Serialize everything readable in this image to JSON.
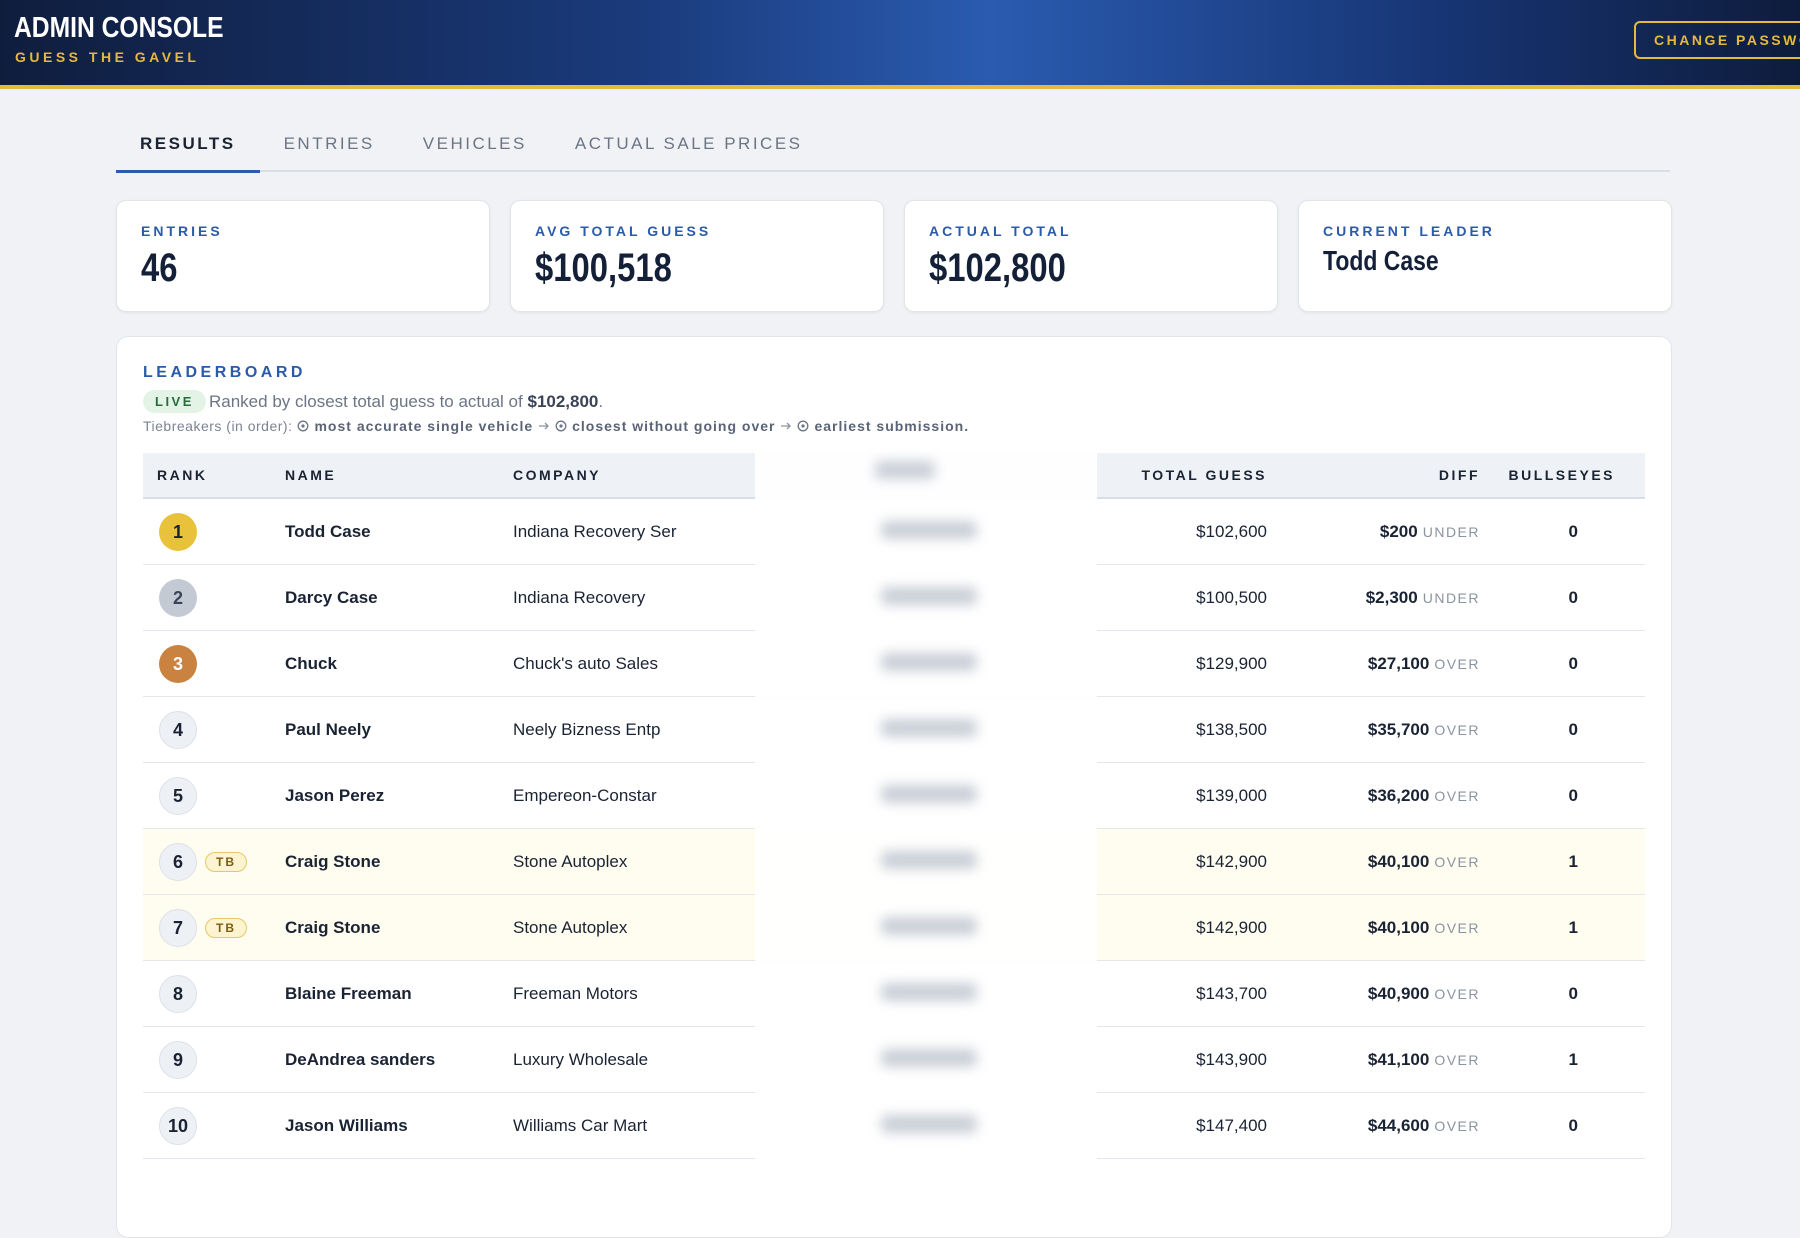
{
  "header": {
    "title": "ADMIN CONSOLE",
    "subtitle": "GUESS THE GAVEL",
    "button": "CHANGE PASSWORD"
  },
  "tabs": [
    "RESULTS",
    "ENTRIES",
    "VEHICLES",
    "ACTUAL SALE PRICES"
  ],
  "stats": [
    {
      "label": "ENTRIES",
      "value": "46"
    },
    {
      "label": "AVG TOTAL GUESS",
      "value": "$100,518"
    },
    {
      "label": "ACTUAL TOTAL",
      "value": "$102,800"
    },
    {
      "label": "CURRENT LEADER",
      "value": "Todd Case"
    }
  ],
  "leaderboard": {
    "title": "LEADERBOARD",
    "badge": "LIVE",
    "description": "Ranked by closest total guess to actual of",
    "actual": "$102,800",
    "period": ".",
    "tiebreakers": {
      "label": "Tiebreakers (in order):",
      "items": [
        "most accurate single vehicle",
        "closest without going over",
        "earliest submission."
      ]
    },
    "columns": [
      "RANK",
      "NAME",
      "COMPANY",
      "TOTAL GUESS",
      "DIFF",
      "BULLSEYES"
    ],
    "rows": [
      {
        "rank": 1,
        "name": "Todd Case",
        "company": "Indiana Recovery Ser",
        "total": "$102,600",
        "diff": "$200",
        "dir": "UNDER",
        "bullseyes": 0
      },
      {
        "rank": 2,
        "name": "Darcy Case",
        "company": "Indiana Recovery",
        "total": "$100,500",
        "diff": "$2,300",
        "dir": "UNDER",
        "bullseyes": 0
      },
      {
        "rank": 3,
        "name": "Chuck",
        "company": "Chuck's auto Sales",
        "total": "$129,900",
        "diff": "$27,100",
        "dir": "OVER",
        "bullseyes": 0
      },
      {
        "rank": 4,
        "name": "Paul Neely",
        "company": "Neely Bizness Entp",
        "total": "$138,500",
        "diff": "$35,700",
        "dir": "OVER",
        "bullseyes": 0
      },
      {
        "rank": 5,
        "name": "Jason Perez",
        "company": "Empereon-Constar",
        "total": "$139,000",
        "diff": "$36,200",
        "dir": "OVER",
        "bullseyes": 0
      },
      {
        "rank": 6,
        "tb": "TB",
        "name": "Craig Stone",
        "company": "Stone Autoplex",
        "total": "$142,900",
        "diff": "$40,100",
        "dir": "OVER",
        "bullseyes": 1
      },
      {
        "rank": 7,
        "tb": "TB",
        "name": "Craig Stone",
        "company": "Stone Autoplex",
        "total": "$142,900",
        "diff": "$40,100",
        "dir": "OVER",
        "bullseyes": 1
      },
      {
        "rank": 8,
        "name": "Blaine Freeman",
        "company": "Freeman Motors",
        "total": "$143,700",
        "diff": "$40,900",
        "dir": "OVER",
        "bullseyes": 0
      },
      {
        "rank": 9,
        "name": "DeAndrea sanders",
        "company": "Luxury Wholesale",
        "total": "$143,900",
        "diff": "$41,100",
        "dir": "OVER",
        "bullseyes": 1
      },
      {
        "rank": 10,
        "name": "Jason Williams",
        "company": "Williams Car Mart",
        "total": "$147,400",
        "diff": "$44,600",
        "dir": "OVER",
        "bullseyes": 0
      }
    ]
  }
}
